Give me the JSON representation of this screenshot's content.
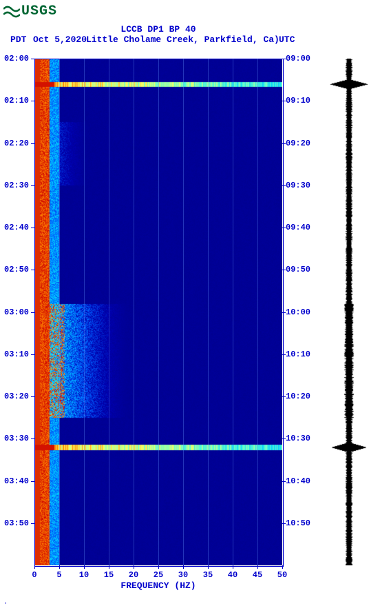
{
  "logo": {
    "text": "USGS",
    "color": "#006633"
  },
  "title": {
    "line1": "LCCB DP1 BP 40",
    "pdt": "PDT",
    "date": "Oct 5,2020",
    "location": "Little Cholame Creek, Parkfield, Ca)",
    "utc": "UTC"
  },
  "spectrogram": {
    "type": "heatmap",
    "xlabel": "FREQUENCY (HZ)",
    "xlim": [
      0,
      50
    ],
    "xticks": [
      0,
      5,
      10,
      15,
      20,
      25,
      30,
      35,
      40,
      45,
      50
    ],
    "ylim_minutes": [
      0,
      120
    ],
    "pdt_start": "02:00",
    "utc_start": "09:00",
    "pdt_labels": [
      "02:00",
      "02:10",
      "02:20",
      "02:30",
      "02:40",
      "02:50",
      "03:00",
      "03:10",
      "03:20",
      "03:30",
      "03:40",
      "03:50"
    ],
    "utc_labels": [
      "09:00",
      "09:10",
      "09:20",
      "09:30",
      "09:40",
      "09:50",
      "10:00",
      "10:10",
      "10:20",
      "10:30",
      "10:40",
      "10:50"
    ],
    "label_interval_min": 10,
    "colormap": {
      "background": "#00008b",
      "low": "#0000b0",
      "mid1": "#0060ff",
      "mid2": "#00d0ff",
      "mid3": "#60ffd0",
      "high1": "#ffff60",
      "high2": "#ff8000",
      "peak": "#cc0000"
    },
    "gridline_color": "#6496ff",
    "axis_color": "#0000cc",
    "label_fontsize": 12,
    "title_fontsize": 13,
    "events": [
      {
        "time_min": 6,
        "type": "broadband_line"
      },
      {
        "time_min": 92,
        "type": "broadband_line"
      }
    ],
    "energy_band": {
      "freq_range": [
        0,
        3
      ],
      "intensity": "peak",
      "note": "persistent low-frequency energy"
    },
    "activity_clusters": [
      {
        "time_range": [
          15,
          30
        ],
        "freq_range": [
          2,
          12
        ],
        "intensity": "mid"
      },
      {
        "time_range": [
          58,
          85
        ],
        "freq_range": [
          2,
          20
        ],
        "intensity": "high"
      }
    ]
  },
  "waveform": {
    "color": "#000000",
    "baseline_width": 6,
    "events": [
      {
        "time_min": 6,
        "amplitude": 28
      },
      {
        "time_min": 92,
        "amplitude": 26
      }
    ]
  }
}
